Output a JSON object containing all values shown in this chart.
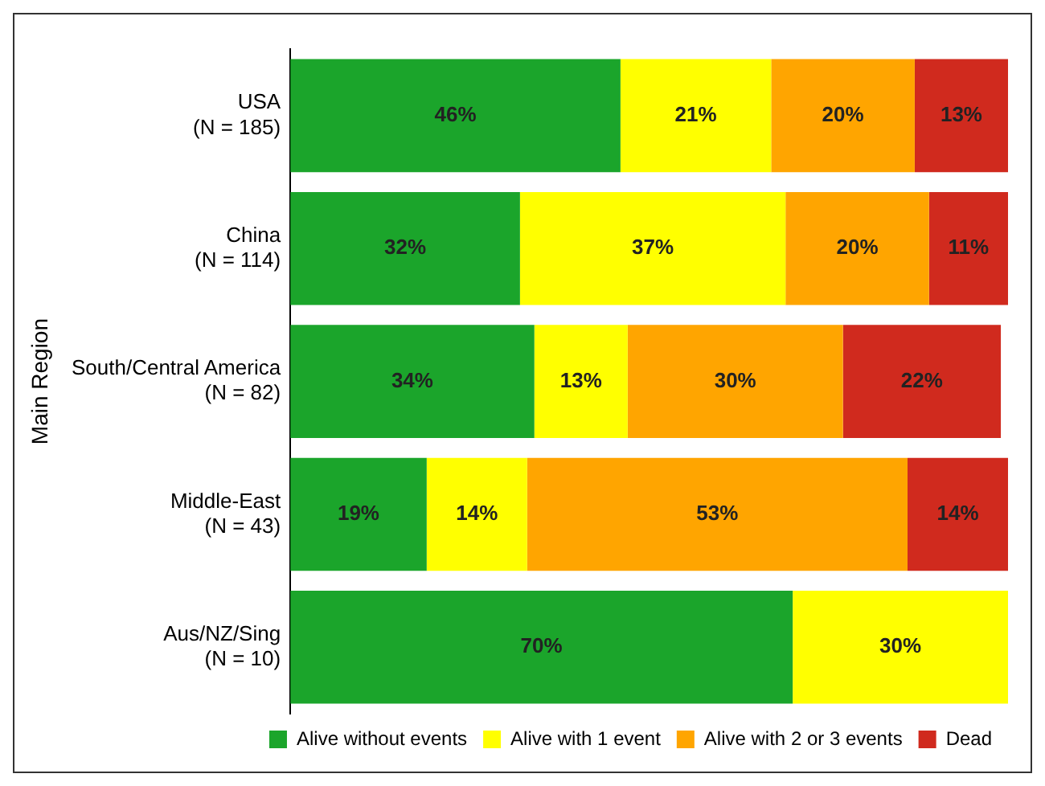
{
  "chart_data": {
    "type": "bar",
    "orientation": "horizontal",
    "stacked": true,
    "ylabel": "Main Region",
    "categories": [
      "USA\n(N = 185)",
      "China\n(N = 114)",
      "South/Central America\n(N = 82)",
      "Middle-East\n(N = 43)",
      "Aus/NZ/Sing\n(N = 10)"
    ],
    "xlim": [
      0,
      100
    ],
    "tick_labels": "y",
    "grid": false,
    "legend": "bottom",
    "series": [
      {
        "name": "Alive without events",
        "color": "#1ba52b",
        "values": [
          46,
          32,
          34,
          19,
          70
        ],
        "value_labels": [
          "46%",
          "32%",
          "34%",
          "19%",
          "70%"
        ]
      },
      {
        "name": "Alive with 1 event",
        "color": "#ffff00",
        "values": [
          21,
          37,
          13,
          14,
          30
        ],
        "value_labels": [
          "21%",
          "37%",
          "13%",
          "14%",
          "30%"
        ]
      },
      {
        "name": "Alive with 2 or 3 events",
        "color": "#ffa500",
        "values": [
          20,
          20,
          30,
          53,
          null
        ],
        "value_labels": [
          "20%",
          "20%",
          "30%",
          "53%",
          null
        ]
      },
      {
        "name": "Dead",
        "color": "#d02a1e",
        "values": [
          13,
          11,
          22,
          14,
          null
        ],
        "value_labels": [
          "13%",
          "11%",
          "22%",
          "14%",
          null
        ]
      }
    ]
  }
}
